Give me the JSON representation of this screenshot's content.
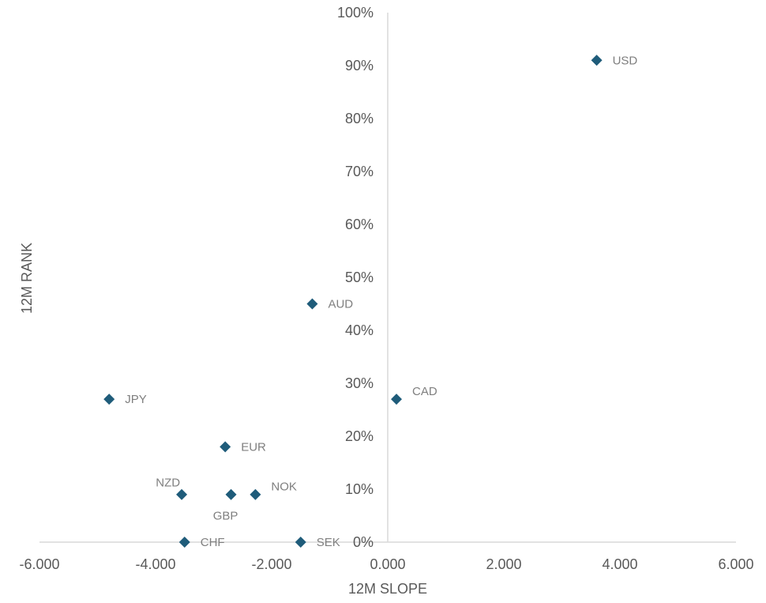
{
  "chart_data": {
    "type": "scatter",
    "title": "",
    "xlabel": "12M SLOPE",
    "ylabel": "12M RANK",
    "xlim": [
      -6,
      6
    ],
    "ylim": [
      0,
      1
    ],
    "x_ticks": [
      -6,
      -4,
      -2,
      0,
      2,
      4,
      6
    ],
    "x_tick_labels": [
      "-6.000",
      "-4.000",
      "-2.000",
      "0.000",
      "2.000",
      "4.000",
      "6.000"
    ],
    "y_ticks": [
      0,
      0.1,
      0.2,
      0.3,
      0.4,
      0.5,
      0.6,
      0.7,
      0.8,
      0.9,
      1.0
    ],
    "y_tick_labels": [
      "0%",
      "10%",
      "20%",
      "30%",
      "40%",
      "50%",
      "60%",
      "70%",
      "80%",
      "90%",
      "100%"
    ],
    "grid": false,
    "legend": false,
    "marker_color": "#1f5c7a",
    "points": [
      {
        "label": "USD",
        "x": 3.6,
        "y": 0.91,
        "label_pos": "right"
      },
      {
        "label": "AUD",
        "x": -1.3,
        "y": 0.45,
        "label_pos": "right"
      },
      {
        "label": "CAD",
        "x": 0.15,
        "y": 0.27,
        "label_pos": "above-right"
      },
      {
        "label": "JPY",
        "x": -4.8,
        "y": 0.27,
        "label_pos": "right"
      },
      {
        "label": "EUR",
        "x": -2.8,
        "y": 0.18,
        "label_pos": "right"
      },
      {
        "label": "NZD",
        "x": -3.55,
        "y": 0.09,
        "label_pos": "above-left"
      },
      {
        "label": "GBP",
        "x": -2.7,
        "y": 0.09,
        "label_pos": "below"
      },
      {
        "label": "NOK",
        "x": -2.28,
        "y": 0.09,
        "label_pos": "above-right"
      },
      {
        "label": "CHF",
        "x": -3.5,
        "y": 0.0,
        "label_pos": "right"
      },
      {
        "label": "SEK",
        "x": -1.5,
        "y": 0.0,
        "label_pos": "right"
      }
    ]
  }
}
